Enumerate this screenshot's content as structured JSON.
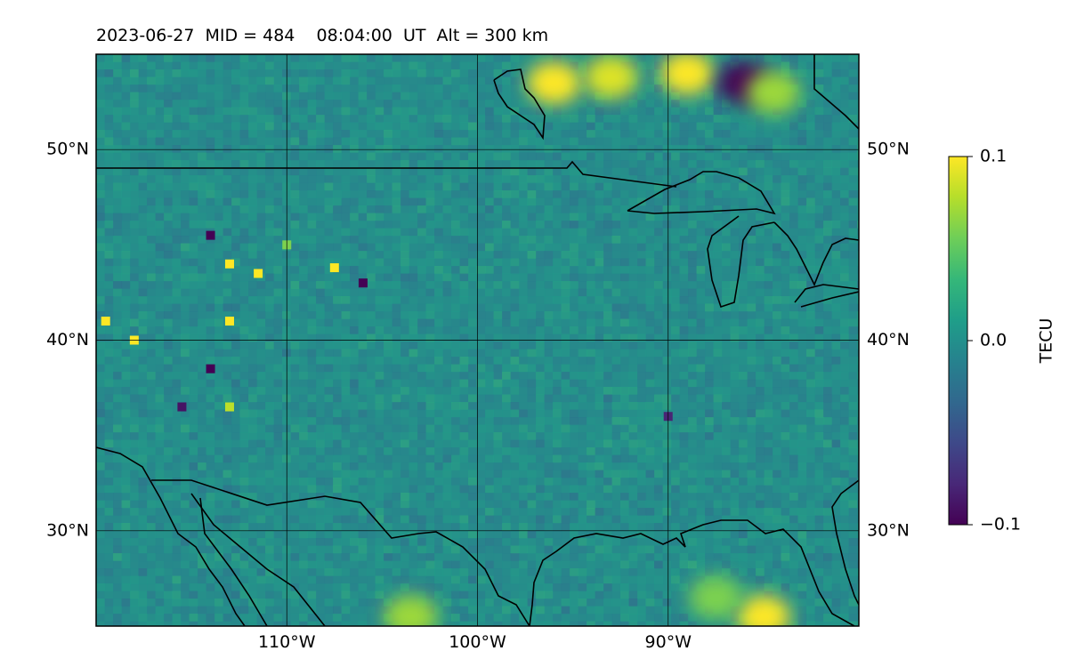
{
  "title": "2023-06-27  MID = 484    08:04:00  UT  Alt = 300 km",
  "map": {
    "lon_range": [
      -120,
      -80
    ],
    "lat_range": [
      25,
      55
    ],
    "grid": true,
    "lat_ticks": [
      {
        "value": 50,
        "label": "50°N"
      },
      {
        "value": 40,
        "label": "40°N"
      },
      {
        "value": 30,
        "label": "30°N"
      }
    ],
    "lon_ticks": [
      {
        "value": -110,
        "label": "110°W"
      },
      {
        "value": -100,
        "label": "100°W"
      },
      {
        "value": -90,
        "label": "90°W"
      }
    ],
    "field": "TEC perturbation",
    "background_value": 0.0,
    "anomalies": [
      {
        "lon": -96.0,
        "lat": 53.5,
        "value": 0.1
      },
      {
        "lon": -93.0,
        "lat": 53.8,
        "value": 0.09
      },
      {
        "lon": -89.0,
        "lat": 54.0,
        "value": 0.1
      },
      {
        "lon": -86.0,
        "lat": 53.5,
        "value": -0.1
      },
      {
        "lon": -84.5,
        "lat": 53.0,
        "value": 0.07
      },
      {
        "lon": -103.5,
        "lat": 25.5,
        "value": 0.07
      },
      {
        "lon": -85.0,
        "lat": 25.5,
        "value": 0.1
      },
      {
        "lon": -87.5,
        "lat": 26.5,
        "value": 0.06
      },
      {
        "lon": -113.0,
        "lat": 44.0,
        "value": 0.1
      },
      {
        "lon": -114.0,
        "lat": 45.5,
        "value": -0.1
      },
      {
        "lon": -111.5,
        "lat": 43.5,
        "value": 0.1
      },
      {
        "lon": -110.0,
        "lat": 45.0,
        "value": 0.06
      },
      {
        "lon": -118.0,
        "lat": 40.0,
        "value": 0.1
      },
      {
        "lon": -119.5,
        "lat": 41.0,
        "value": 0.1
      },
      {
        "lon": -107.5,
        "lat": 43.8,
        "value": 0.1
      },
      {
        "lon": -106.0,
        "lat": 43.0,
        "value": -0.1
      },
      {
        "lon": -113.0,
        "lat": 41.0,
        "value": 0.1
      },
      {
        "lon": -114.0,
        "lat": 38.5,
        "value": -0.1
      },
      {
        "lon": -113.0,
        "lat": 36.5,
        "value": 0.08
      },
      {
        "lon": -90.0,
        "lat": 36.0,
        "value": -0.08
      },
      {
        "lon": -115.5,
        "lat": 36.5,
        "value": -0.09
      }
    ]
  },
  "colorbar": {
    "label": "TECU",
    "vmin": -0.1,
    "vmax": 0.1,
    "ticks": [
      {
        "value": 0.1,
        "label": "0.1"
      },
      {
        "value": 0.0,
        "label": "0.0"
      },
      {
        "value": -0.1,
        "label": "−0.1"
      }
    ],
    "colormap": [
      "#440154",
      "#482878",
      "#3e4989",
      "#31688e",
      "#26828e",
      "#1f9e89",
      "#35b779",
      "#6ece58",
      "#b5de2b",
      "#fde725"
    ]
  },
  "colors": {
    "coastline": "#000000",
    "gridline": "#000000",
    "background_field": "#2a8a8b"
  }
}
